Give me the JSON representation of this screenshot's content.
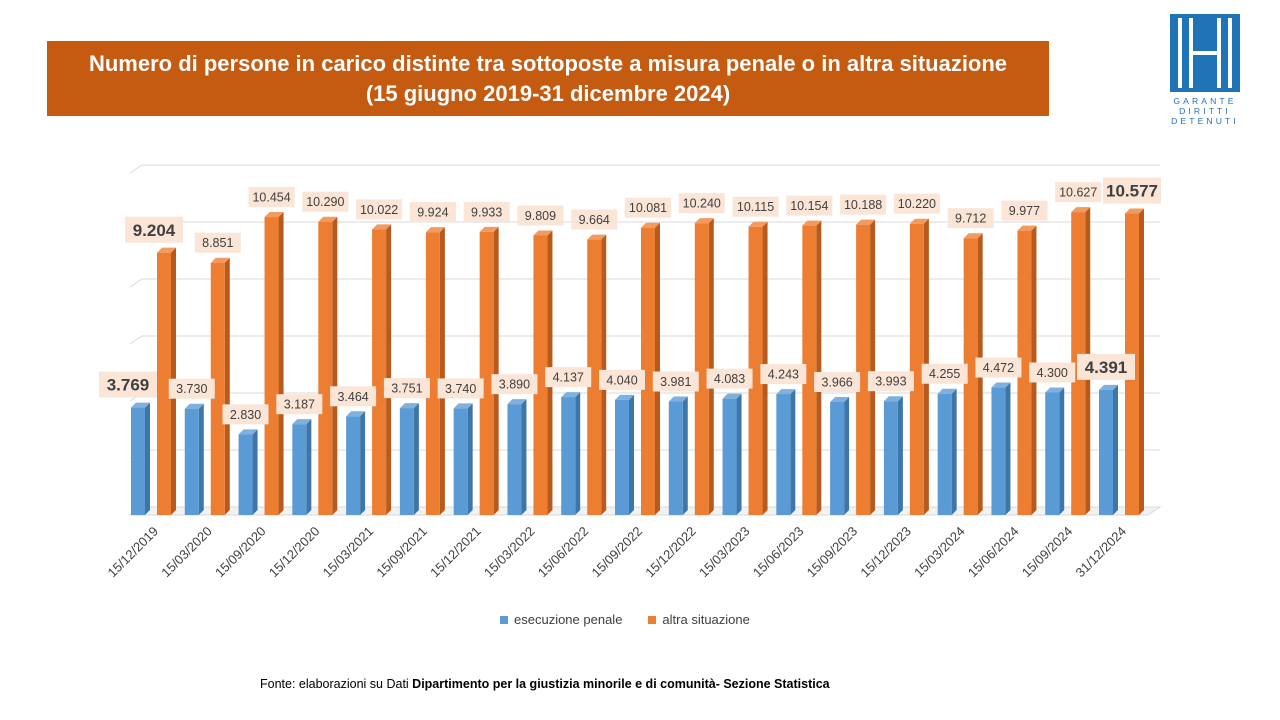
{
  "title": {
    "line1": "Numero di persone in carico distinte tra sottoposte a misura penale o in altra situazione",
    "line2": "(15 giugno 2019-31 dicembre 2024)"
  },
  "logo": {
    "line1": "GARANTE",
    "line2": "DIRITTI",
    "line3": "DETENUTI"
  },
  "source": {
    "prefix": "Fonte:  elaborazioni su Dati ",
    "bold": "Dipartimento per la giustizia minorile e di comunità- Sezione Statistica"
  },
  "colors": {
    "banner": "#c55a11",
    "series1": "#5b9bd5",
    "series2": "#ed7d31",
    "label_bg": "#fbe5d6",
    "logo": "#1f73b7"
  },
  "chart_data": {
    "type": "bar",
    "title": "Numero di persone in carico distinte tra sottoposte a misura penale o in altra situazione (15 giugno 2019-31 dicembre 2024)",
    "categories": [
      "15/12/2019",
      "15/03/2020",
      "15/09/2020",
      "15/12/2020",
      "15/03/2021",
      "15/09/2021",
      "15/12/2021",
      "15/03/2022",
      "15/06/2022",
      "15/09/2022",
      "15/12/2022",
      "15/03/2023",
      "15/06/2023",
      "15/09/2023",
      "15/12/2023",
      "15/03/2024",
      "15/06/2024",
      "15/09/2024",
      "31/12/2024"
    ],
    "series": [
      {
        "name": "esecuzione penale",
        "values": [
          3769,
          3730,
          2830,
          3187,
          3464,
          3751,
          3740,
          3890,
          4137,
          4040,
          3981,
          4083,
          4243,
          3966,
          3993,
          4255,
          4472,
          4300,
          4391
        ],
        "labels": [
          "3.769",
          "3.730",
          "2.830",
          "3.187",
          "3.464",
          "3.751",
          "3.740",
          "3.890",
          "4.137",
          "4.040",
          "3.981",
          "4.083",
          "4.243",
          "3.966",
          "3.993",
          "4.255",
          "4.472",
          "4.300",
          "4.391"
        ]
      },
      {
        "name": "altra situazione",
        "values": [
          9204,
          8851,
          10454,
          10290,
          10022,
          9924,
          9933,
          9809,
          9664,
          10081,
          10240,
          10115,
          10154,
          10188,
          10220,
          9712,
          9977,
          10627,
          10577
        ],
        "labels": [
          "9.204",
          "8.851",
          "10.454",
          "10.290",
          "10.022",
          "9.924",
          "9.933",
          "9.809",
          "9.664",
          "10.081",
          "10.240",
          "10.115",
          "10.154",
          "10.188",
          "10.220",
          "9.712",
          "9.977",
          "10.627",
          "10.577"
        ]
      }
    ],
    "ylim": [
      0,
      12000
    ],
    "grid": true,
    "three_d": true,
    "emphasized_label_indices": [
      0,
      18
    ],
    "legend": "bottom"
  }
}
